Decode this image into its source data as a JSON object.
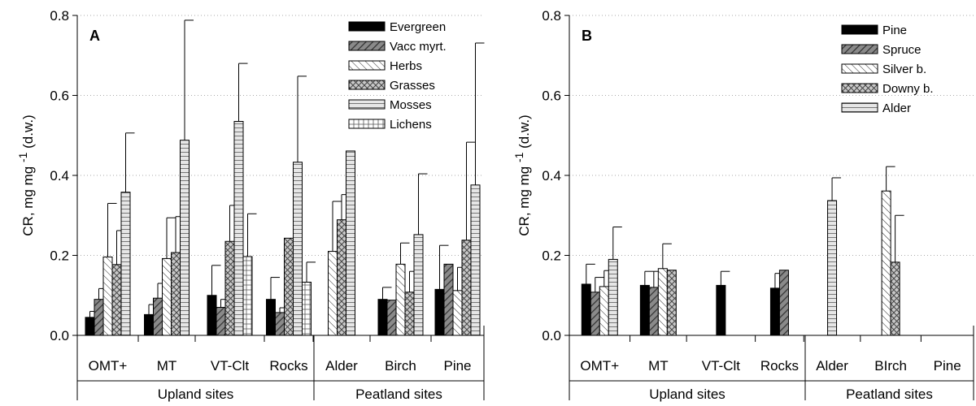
{
  "chart_data": [
    {
      "panel_label": "A",
      "type": "bar",
      "ylabel": "CR, mg mg -1 (d.w.)",
      "ylabel_parts": {
        "main": "CR, mg mg",
        "sup": "-1",
        "tail": "(d.w.)"
      },
      "ylim": [
        0,
        0.8
      ],
      "yticks": [
        "0.0",
        "0.2",
        "0.4",
        "0.6",
        "0.8"
      ],
      "grid": "dotted-horizontal",
      "legend_position": "top-right",
      "categories": [
        "OMT+",
        "MT",
        "VT-Clt",
        "Rocks",
        "Alder",
        "Birch",
        "Pine"
      ],
      "groups": [
        {
          "label": "Upland sites",
          "categories": [
            "OMT+",
            "MT",
            "VT-Clt",
            "Rocks"
          ]
        },
        {
          "label": "Peatland sites",
          "categories": [
            "Alder",
            "Birch",
            "Pine"
          ]
        }
      ],
      "series": [
        {
          "name": "Evergreen",
          "pattern": "solid-black",
          "values": [
            0.045,
            0.052,
            0.1,
            0.09,
            null,
            0.09,
            0.115
          ],
          "errors": [
            0.015,
            0.025,
            0.075,
            0.055,
            null,
            0.03,
            0.11
          ]
        },
        {
          "name": "Vacc myrt.",
          "pattern": "diag-dark",
          "values": [
            0.09,
            0.093,
            0.07,
            0.057,
            null,
            0.088,
            0.178
          ],
          "errors": [
            0.027,
            0.037,
            0.02,
            0.012,
            null,
            null,
            null
          ]
        },
        {
          "name": "Herbs",
          "pattern": "diag-white",
          "values": [
            0.196,
            0.192,
            null,
            null,
            0.21,
            0.178,
            0.112
          ],
          "errors": [
            0.134,
            0.102,
            null,
            null,
            0.125,
            0.053,
            0.058
          ]
        },
        {
          "name": "Grasses",
          "pattern": "crosshatch",
          "values": [
            0.177,
            0.207,
            0.235,
            0.243,
            0.289,
            0.108,
            0.238
          ],
          "errors": [
            0.085,
            0.09,
            0.09,
            null,
            0.063,
            0.052,
            0.245
          ]
        },
        {
          "name": "Mosses",
          "pattern": "horizontal",
          "values": [
            0.358,
            0.488,
            0.535,
            0.433,
            0.461,
            0.252,
            0.376
          ],
          "errors": [
            0.148,
            0.3,
            0.145,
            0.215,
            null,
            0.152,
            0.355
          ]
        },
        {
          "name": "Lichens",
          "pattern": "grid",
          "values": [
            null,
            null,
            0.197,
            0.133,
            null,
            null,
            null
          ],
          "errors": [
            null,
            null,
            0.107,
            0.05,
            null,
            null,
            null
          ]
        }
      ]
    },
    {
      "panel_label": "B",
      "type": "bar",
      "ylabel": "CR, mg mg -1 (d.w.)",
      "ylabel_parts": {
        "main": "CR, mg mg",
        "sup": "-1",
        "tail": "(d.w.)"
      },
      "ylim": [
        0,
        0.8
      ],
      "yticks": [
        "0.0",
        "0.2",
        "0.4",
        "0.6",
        "0.8"
      ],
      "grid": "dotted-horizontal",
      "legend_position": "top-right",
      "categories": [
        "OMT+",
        "MT",
        "VT-Clt",
        "Rocks",
        "Alder",
        "BIrch",
        "Pine"
      ],
      "groups": [
        {
          "label": "Upland sites",
          "categories": [
            "OMT+",
            "MT",
            "VT-Clt",
            "Rocks"
          ]
        },
        {
          "label": "Peatland sites",
          "categories": [
            "Alder",
            "BIrch",
            "Pine"
          ]
        }
      ],
      "series": [
        {
          "name": "Pine",
          "pattern": "solid-black",
          "values": [
            0.128,
            0.125,
            0.125,
            0.118,
            null,
            null,
            null
          ],
          "errors": [
            0.05,
            0.035,
            0.035,
            0.037,
            null,
            null,
            null
          ]
        },
        {
          "name": "Spruce",
          "pattern": "diag-dark",
          "values": [
            0.108,
            0.12,
            null,
            0.163,
            null,
            null,
            null
          ],
          "errors": [
            0.037,
            0.04,
            null,
            null,
            null,
            null,
            null
          ]
        },
        {
          "name": "Silver b.",
          "pattern": "diag-white",
          "values": [
            0.122,
            0.167,
            null,
            null,
            null,
            0.361,
            null
          ],
          "errors": [
            0.04,
            0.062,
            null,
            null,
            null,
            0.061,
            null
          ]
        },
        {
          "name": "Downy b.",
          "pattern": "crosshatch",
          "values": [
            null,
            0.163,
            null,
            null,
            null,
            0.183,
            null
          ],
          "errors": [
            null,
            null,
            null,
            null,
            null,
            0.117,
            null
          ]
        },
        {
          "name": "Alder",
          "pattern": "horizontal",
          "values": [
            0.19,
            null,
            null,
            null,
            0.337,
            null,
            null
          ],
          "errors": [
            0.081,
            null,
            null,
            null,
            0.057,
            null,
            null
          ]
        }
      ]
    }
  ]
}
